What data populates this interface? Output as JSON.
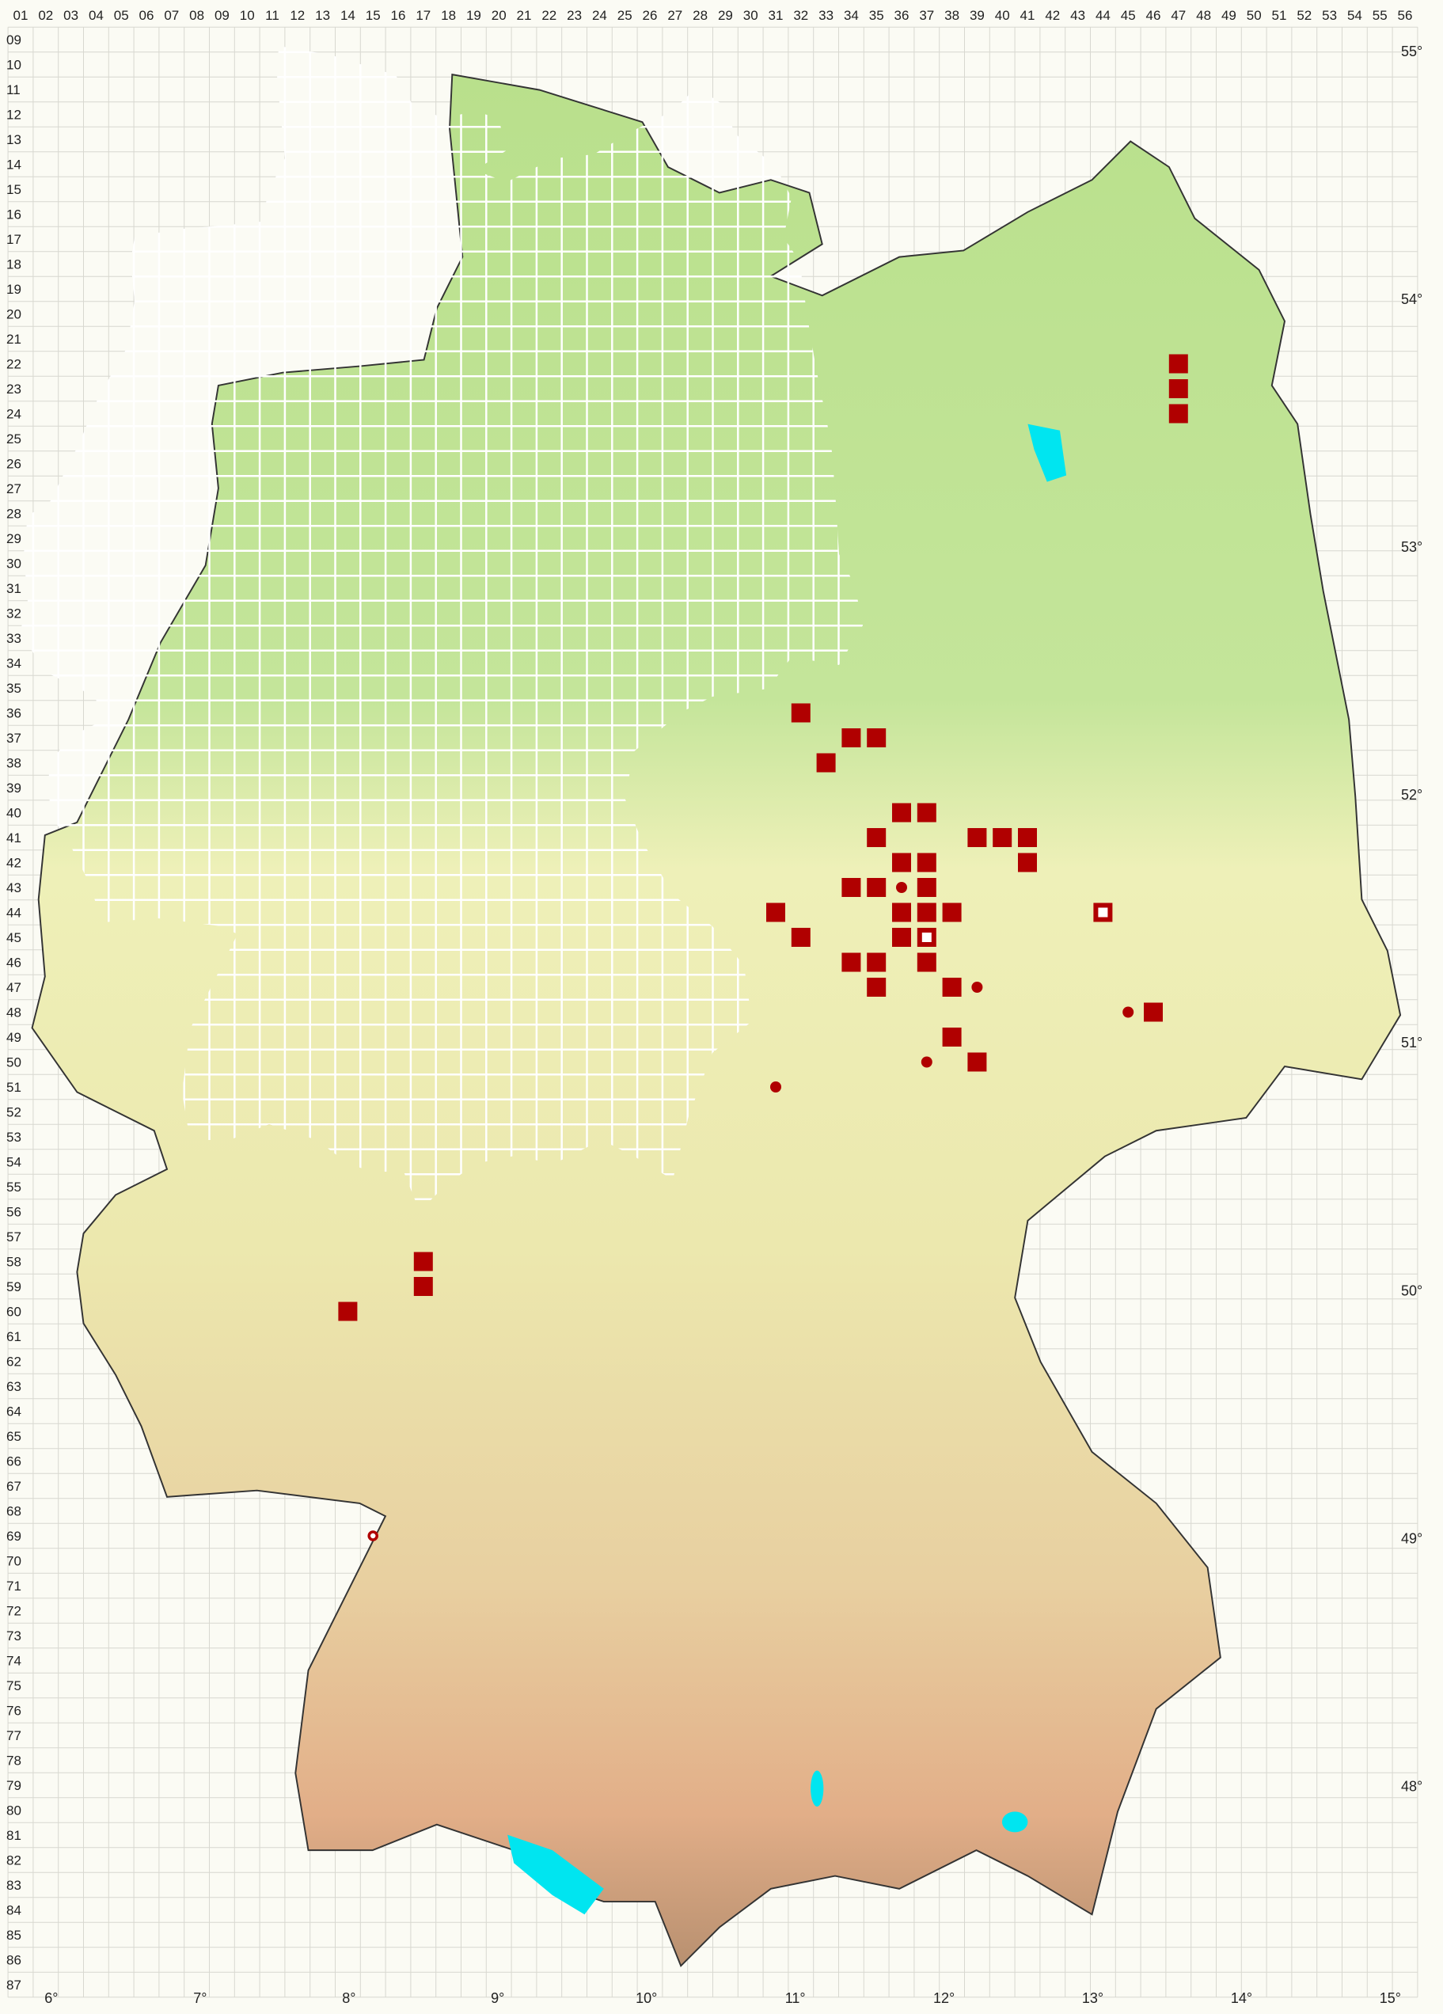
{
  "map": {
    "columns": [
      "01",
      "02",
      "03",
      "04",
      "05",
      "06",
      "07",
      "08",
      "09",
      "10",
      "11",
      "12",
      "13",
      "14",
      "15",
      "16",
      "17",
      "18",
      "19",
      "20",
      "21",
      "22",
      "23",
      "24",
      "25",
      "26",
      "27",
      "28",
      "29",
      "30",
      "31",
      "32",
      "33",
      "34",
      "35",
      "36",
      "37",
      "38",
      "39",
      "40",
      "41",
      "42",
      "43",
      "44",
      "45",
      "46",
      "47",
      "48",
      "49",
      "50",
      "51",
      "52",
      "53",
      "54",
      "55",
      "56"
    ],
    "rows": [
      "09",
      "10",
      "11",
      "12",
      "13",
      "14",
      "15",
      "16",
      "17",
      "18",
      "19",
      "20",
      "21",
      "22",
      "23",
      "24",
      "25",
      "26",
      "27",
      "28",
      "29",
      "30",
      "31",
      "32",
      "33",
      "34",
      "35",
      "36",
      "37",
      "38",
      "39",
      "40",
      "41",
      "42",
      "43",
      "44",
      "45",
      "46",
      "47",
      "48",
      "49",
      "50",
      "51",
      "52",
      "53",
      "54",
      "55",
      "56",
      "57",
      "58",
      "59",
      "60",
      "61",
      "62",
      "63",
      "64",
      "65",
      "66",
      "67",
      "68",
      "69",
      "70",
      "71",
      "72",
      "73",
      "74",
      "75",
      "76",
      "77",
      "78",
      "79",
      "80",
      "81",
      "82",
      "83",
      "84",
      "85",
      "86",
      "87"
    ],
    "longitudes": [
      "6°",
      "7°",
      "8°",
      "9°",
      "10°",
      "11°",
      "12°",
      "13°",
      "14°",
      "15°"
    ],
    "latitudes": [
      "55°",
      "54°",
      "53°",
      "52°",
      "51°",
      "50°",
      "49°",
      "48°"
    ],
    "colors": {
      "marker": "#b00000",
      "lowland": "#b9e08c",
      "upland": "#eef0b8",
      "mountain": "#e3b48e",
      "water": "#00e5f0",
      "border": "#333333",
      "grid": "#ffffff"
    },
    "markers": [
      {
        "col": 47,
        "row": 22,
        "type": "filled-square"
      },
      {
        "col": 47,
        "row": 23,
        "type": "filled-square"
      },
      {
        "col": 47,
        "row": 24,
        "type": "filled-square"
      },
      {
        "col": 32,
        "row": 36,
        "type": "filled-square"
      },
      {
        "col": 34,
        "row": 37,
        "type": "filled-square"
      },
      {
        "col": 35,
        "row": 37,
        "type": "filled-square"
      },
      {
        "col": 33,
        "row": 38,
        "type": "filled-square"
      },
      {
        "col": 36,
        "row": 40,
        "type": "filled-square"
      },
      {
        "col": 37,
        "row": 40,
        "type": "filled-square"
      },
      {
        "col": 35,
        "row": 41,
        "type": "filled-square"
      },
      {
        "col": 39,
        "row": 41,
        "type": "filled-square"
      },
      {
        "col": 40,
        "row": 41,
        "type": "filled-square"
      },
      {
        "col": 41,
        "row": 41,
        "type": "filled-square"
      },
      {
        "col": 36,
        "row": 42,
        "type": "filled-square"
      },
      {
        "col": 37,
        "row": 42,
        "type": "filled-square"
      },
      {
        "col": 41,
        "row": 42,
        "type": "filled-square"
      },
      {
        "col": 34,
        "row": 43,
        "type": "filled-square"
      },
      {
        "col": 35,
        "row": 43,
        "type": "filled-square"
      },
      {
        "col": 36,
        "row": 43,
        "type": "filled-circle"
      },
      {
        "col": 37,
        "row": 43,
        "type": "filled-square"
      },
      {
        "col": 31,
        "row": 44,
        "type": "filled-square"
      },
      {
        "col": 36,
        "row": 44,
        "type": "filled-square"
      },
      {
        "col": 37,
        "row": 44,
        "type": "filled-square"
      },
      {
        "col": 38,
        "row": 44,
        "type": "filled-square"
      },
      {
        "col": 44,
        "row": 44,
        "type": "open-square"
      },
      {
        "col": 32,
        "row": 45,
        "type": "filled-square"
      },
      {
        "col": 36,
        "row": 45,
        "type": "filled-square"
      },
      {
        "col": 37,
        "row": 45,
        "type": "open-square"
      },
      {
        "col": 34,
        "row": 46,
        "type": "filled-square"
      },
      {
        "col": 35,
        "row": 46,
        "type": "filled-square"
      },
      {
        "col": 37,
        "row": 46,
        "type": "filled-square"
      },
      {
        "col": 35,
        "row": 47,
        "type": "filled-square"
      },
      {
        "col": 38,
        "row": 47,
        "type": "filled-square"
      },
      {
        "col": 39,
        "row": 47,
        "type": "filled-circle"
      },
      {
        "col": 45,
        "row": 48,
        "type": "filled-circle"
      },
      {
        "col": 46,
        "row": 48,
        "type": "filled-square"
      },
      {
        "col": 38,
        "row": 49,
        "type": "filled-square"
      },
      {
        "col": 37,
        "row": 50,
        "type": "filled-circle"
      },
      {
        "col": 39,
        "row": 50,
        "type": "filled-square"
      },
      {
        "col": 31,
        "row": 51,
        "type": "filled-circle"
      },
      {
        "col": 17,
        "row": 58,
        "type": "filled-square"
      },
      {
        "col": 17,
        "row": 59,
        "type": "filled-square"
      },
      {
        "col": 14,
        "row": 60,
        "type": "filled-square"
      },
      {
        "col": 15,
        "row": 69,
        "type": "open-circle"
      }
    ]
  }
}
